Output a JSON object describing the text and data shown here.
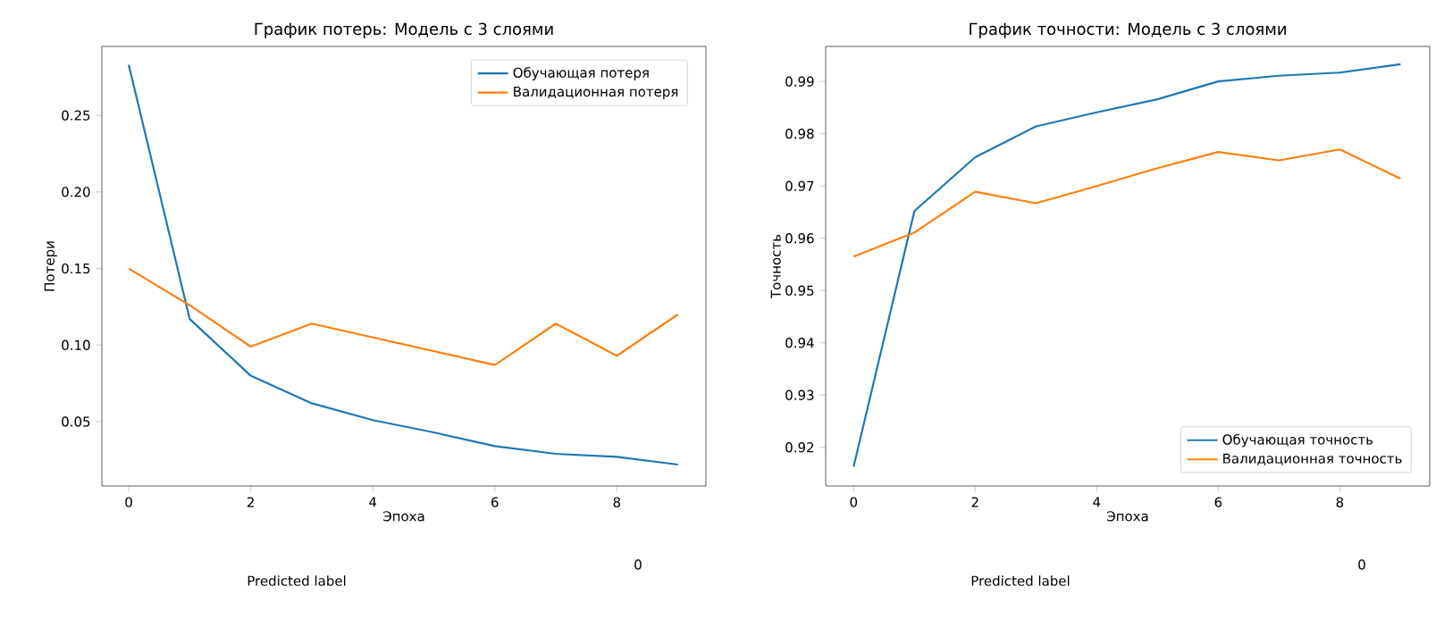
{
  "chart_data": [
    {
      "type": "line",
      "title": "График потерь: Модель с 3 слоями",
      "xlabel": "Эпоха",
      "ylabel": "Потери",
      "x": [
        0,
        1,
        2,
        3,
        4,
        5,
        6,
        7,
        8,
        9
      ],
      "series": [
        {
          "name": "Обучающая потеря",
          "color": "#1f77b4",
          "values": [
            0.283,
            0.117,
            0.08,
            0.062,
            0.051,
            0.043,
            0.034,
            0.029,
            0.027,
            0.022
          ]
        },
        {
          "name": "Валидационная потеря",
          "color": "#ff7f0e",
          "values": [
            0.15,
            0.126,
            0.099,
            0.114,
            0.105,
            0.096,
            0.087,
            0.114,
            0.093,
            0.12
          ]
        }
      ],
      "xlim": [
        -0.44,
        9.46
      ],
      "ylim": [
        0.008,
        0.295
      ],
      "xticks": [
        0,
        2,
        4,
        6,
        8
      ],
      "yticks": [
        0.05,
        {
          "value": 0.1,
          "label": "0.10"
        },
        0.15,
        {
          "value": 0.2,
          "label": "0.20"
        },
        0.25
      ],
      "legend": "top right",
      "grid": false,
      "marker": "none",
      "line_style": "solid",
      "annotations": [
        "Predicted label",
        "0"
      ]
    },
    {
      "type": "line",
      "title": "График точности: Модель с 3 слоями",
      "xlabel": "Эпоха",
      "ylabel": "Точность",
      "x": [
        0,
        1,
        2,
        3,
        4,
        5,
        6,
        7,
        8,
        9
      ],
      "series": [
        {
          "name": "Обучающая точность",
          "color": "#1f77b4",
          "values": [
            0.9163,
            0.9652,
            0.9755,
            0.9814,
            0.9841,
            0.9866,
            0.99,
            0.9911,
            0.9917,
            0.9933
          ]
        },
        {
          "name": "Валидационная точность",
          "color": "#ff7f0e",
          "values": [
            0.9565,
            0.9611,
            0.9689,
            0.9667,
            0.97,
            0.9734,
            0.9765,
            0.9749,
            0.977,
            0.9714
          ]
        }
      ],
      "xlim": [
        -0.46,
        9.48
      ],
      "ylim": [
        0.9126,
        0.9967
      ],
      "xticks": [
        0,
        2,
        4,
        6,
        8
      ],
      "yticks": [
        0.92,
        0.93,
        0.94,
        0.95,
        0.96,
        0.97,
        0.98,
        0.99
      ],
      "legend": "bottom right",
      "grid": false,
      "marker": "none",
      "line_style": "solid",
      "annotations": [
        "Predicted label",
        "0"
      ]
    }
  ]
}
